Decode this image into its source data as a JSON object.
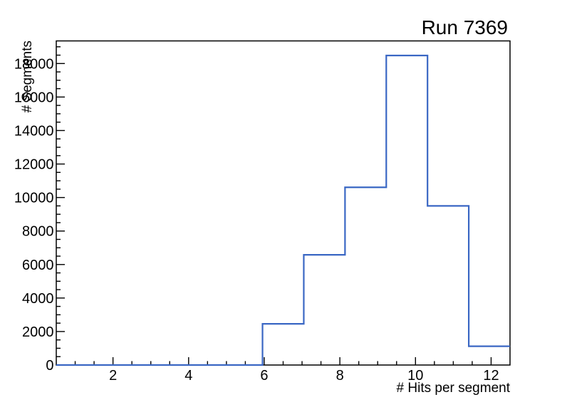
{
  "chart_data": {
    "type": "histogram-step",
    "title": "Run 7369",
    "xlabel": "# Hits per segment",
    "ylabel": "# Segments",
    "bin_edges": [
      0.5,
      1.5909,
      2.6818,
      3.7727,
      4.8636,
      5.9545,
      7.0455,
      8.1364,
      9.2273,
      10.3182,
      11.4091,
      12.5
    ],
    "values": [
      0,
      0,
      0,
      0,
      0,
      2460,
      6580,
      10610,
      18480,
      9500,
      1120
    ],
    "xlim": [
      0.5,
      12.5
    ],
    "ylim": [
      0,
      19350
    ],
    "x_major_ticks": [
      2,
      4,
      6,
      8,
      10,
      12
    ],
    "x_tick_labels": [
      "2",
      "4",
      "6",
      "8",
      "10",
      "12"
    ],
    "x_minor_step": 0.5,
    "y_major_ticks": [
      0,
      2000,
      4000,
      6000,
      8000,
      10000,
      12000,
      14000,
      16000,
      18000
    ],
    "y_tick_labels": [
      "0",
      "2000",
      "4000",
      "6000",
      "8000",
      "10000",
      "12000",
      "14000",
      "16000",
      "18000"
    ],
    "y_minor_step": 500,
    "grid": false,
    "legend_position": "none",
    "line_color": "#3a67c4",
    "axis_color": "#000000",
    "background_color": "#ffffff"
  }
}
